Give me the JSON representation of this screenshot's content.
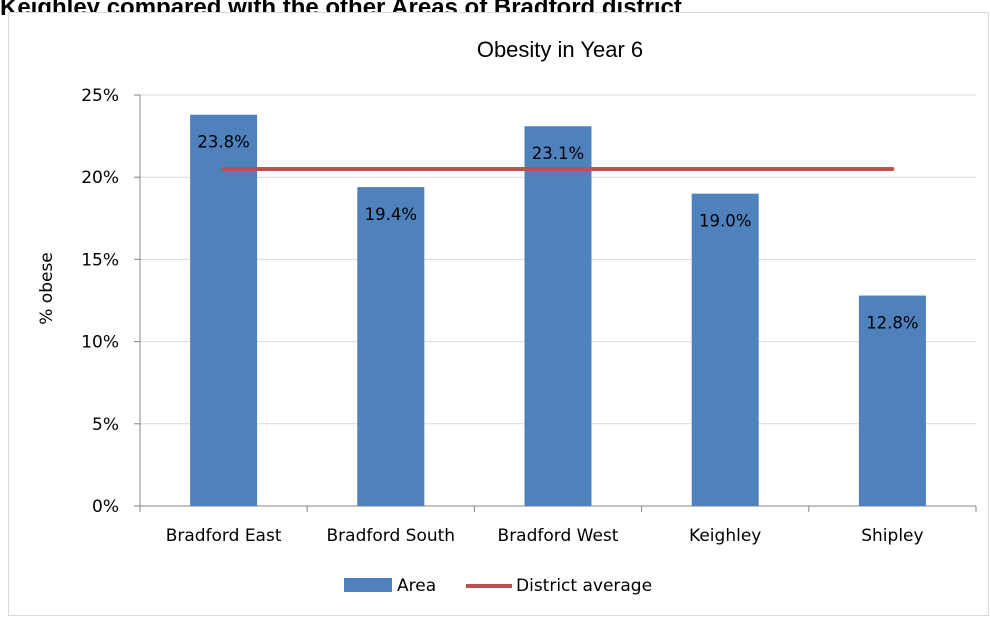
{
  "page": {
    "heading": "Keighley compared with the other Areas of Bradford district"
  },
  "chart_data": {
    "type": "bar",
    "title": "Obesity in Year 6",
    "xlabel": "",
    "ylabel": "% obese",
    "categories": [
      "Bradford East",
      "Bradford South",
      "Bradford West",
      "Keighley",
      "Shipley"
    ],
    "series": [
      {
        "name": "Area",
        "type": "bar",
        "color": "#4f81bd",
        "values": [
          23.8,
          19.4,
          23.1,
          19.0,
          12.8
        ],
        "labels": [
          "23.8%",
          "19.4%",
          "23.1%",
          "19.0%",
          "12.8%"
        ]
      },
      {
        "name": "District average",
        "type": "line",
        "color": "#c0504d",
        "values": [
          20.5,
          20.5,
          20.5,
          20.5,
          20.5
        ]
      }
    ],
    "ylim": [
      0,
      25
    ],
    "yticks": [
      0,
      5,
      10,
      15,
      20,
      25
    ],
    "ytick_labels": [
      "0%",
      "5%",
      "10%",
      "15%",
      "20%",
      "25%"
    ],
    "grid": true,
    "legend_position": "bottom"
  }
}
